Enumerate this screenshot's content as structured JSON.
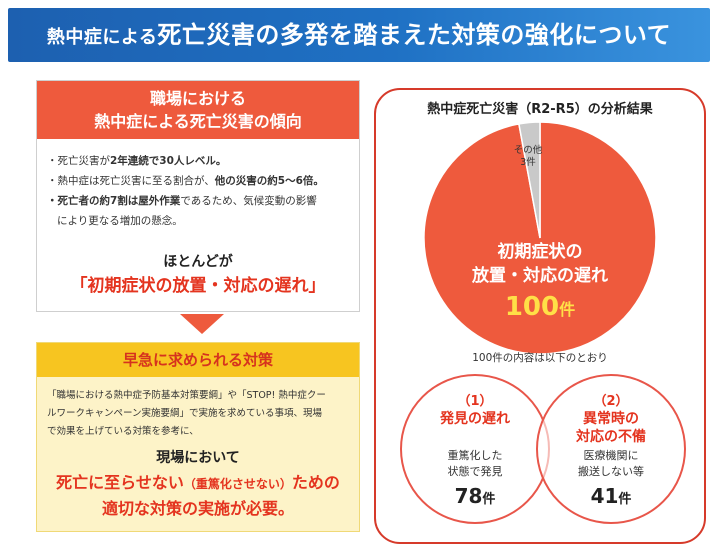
{
  "banner": {
    "title_prefix": "熱中症による",
    "title_main": "死亡災害の多発を踏まえた対策の強化について"
  },
  "trend": {
    "header_line1": "職場における",
    "header_line2": "熱中症による死亡災害の傾向",
    "bullet1_a": "・死亡災害が",
    "bullet1_b": "2年連続で30人レベル。",
    "bullet2_a": "・熱中症は死亡災害に至る割合が、",
    "bullet2_b": "他の災害の約5～6倍。",
    "bullet3_a": "・死亡者の約7割は屋外作業",
    "bullet3_b": "であるため、気候変動の影響",
    "bullet3_c": "により更なる増加の懸念。",
    "mostly": "ほとんどが",
    "mostly_red": "「初期症状の放置・対応の遅れ」"
  },
  "measures": {
    "header": "早急に求められる対策",
    "text_line1": "「職場における熱中症予防基本対策要綱」や「STOP! 熱中症クー",
    "text_line2": "ルワークキャンペーン実施要綱」で実施を求めている事項、現場",
    "text_line3": "で効果を上げている対策を参考に、",
    "genba": "現場において",
    "death_main": "死亡に至らせない",
    "death_paren": "（重篤化させない）",
    "death_tail": "ための",
    "appropriate": "適切な対策の実施が必要。"
  },
  "analysis": {
    "title": "熱中症死亡災害（R2-R5）の分析結果",
    "pie_main_line1": "初期症状の",
    "pie_main_line2": "放置・対応の遅れ",
    "pie_main_count": "100",
    "pie_main_unit": "件",
    "pie_other_line1": "その他",
    "pie_other_line2": "3件",
    "breakdown_note": "100件の内容は以下のとおり",
    "colors": {
      "main": "#ee5a3d",
      "other": "#c9c9c9",
      "circle_border": "#e8564a"
    }
  },
  "circles": [
    {
      "num": "（1）",
      "title_line1": "発見の遅れ",
      "title_line2": "",
      "desc_line1": "重篤化した",
      "desc_line2": "状態で発見",
      "count": "78",
      "unit": "件"
    },
    {
      "num": "（2）",
      "title_line1": "異常時の",
      "title_line2": "対応の不備",
      "desc_line1": "医療機関に",
      "desc_line2": "搬送しない等",
      "count": "41",
      "unit": "件"
    }
  ],
  "chart_data": {
    "type": "pie",
    "categories": [
      "初期症状の放置・対応の遅れ",
      "その他"
    ],
    "values": [
      100,
      3
    ]
  }
}
